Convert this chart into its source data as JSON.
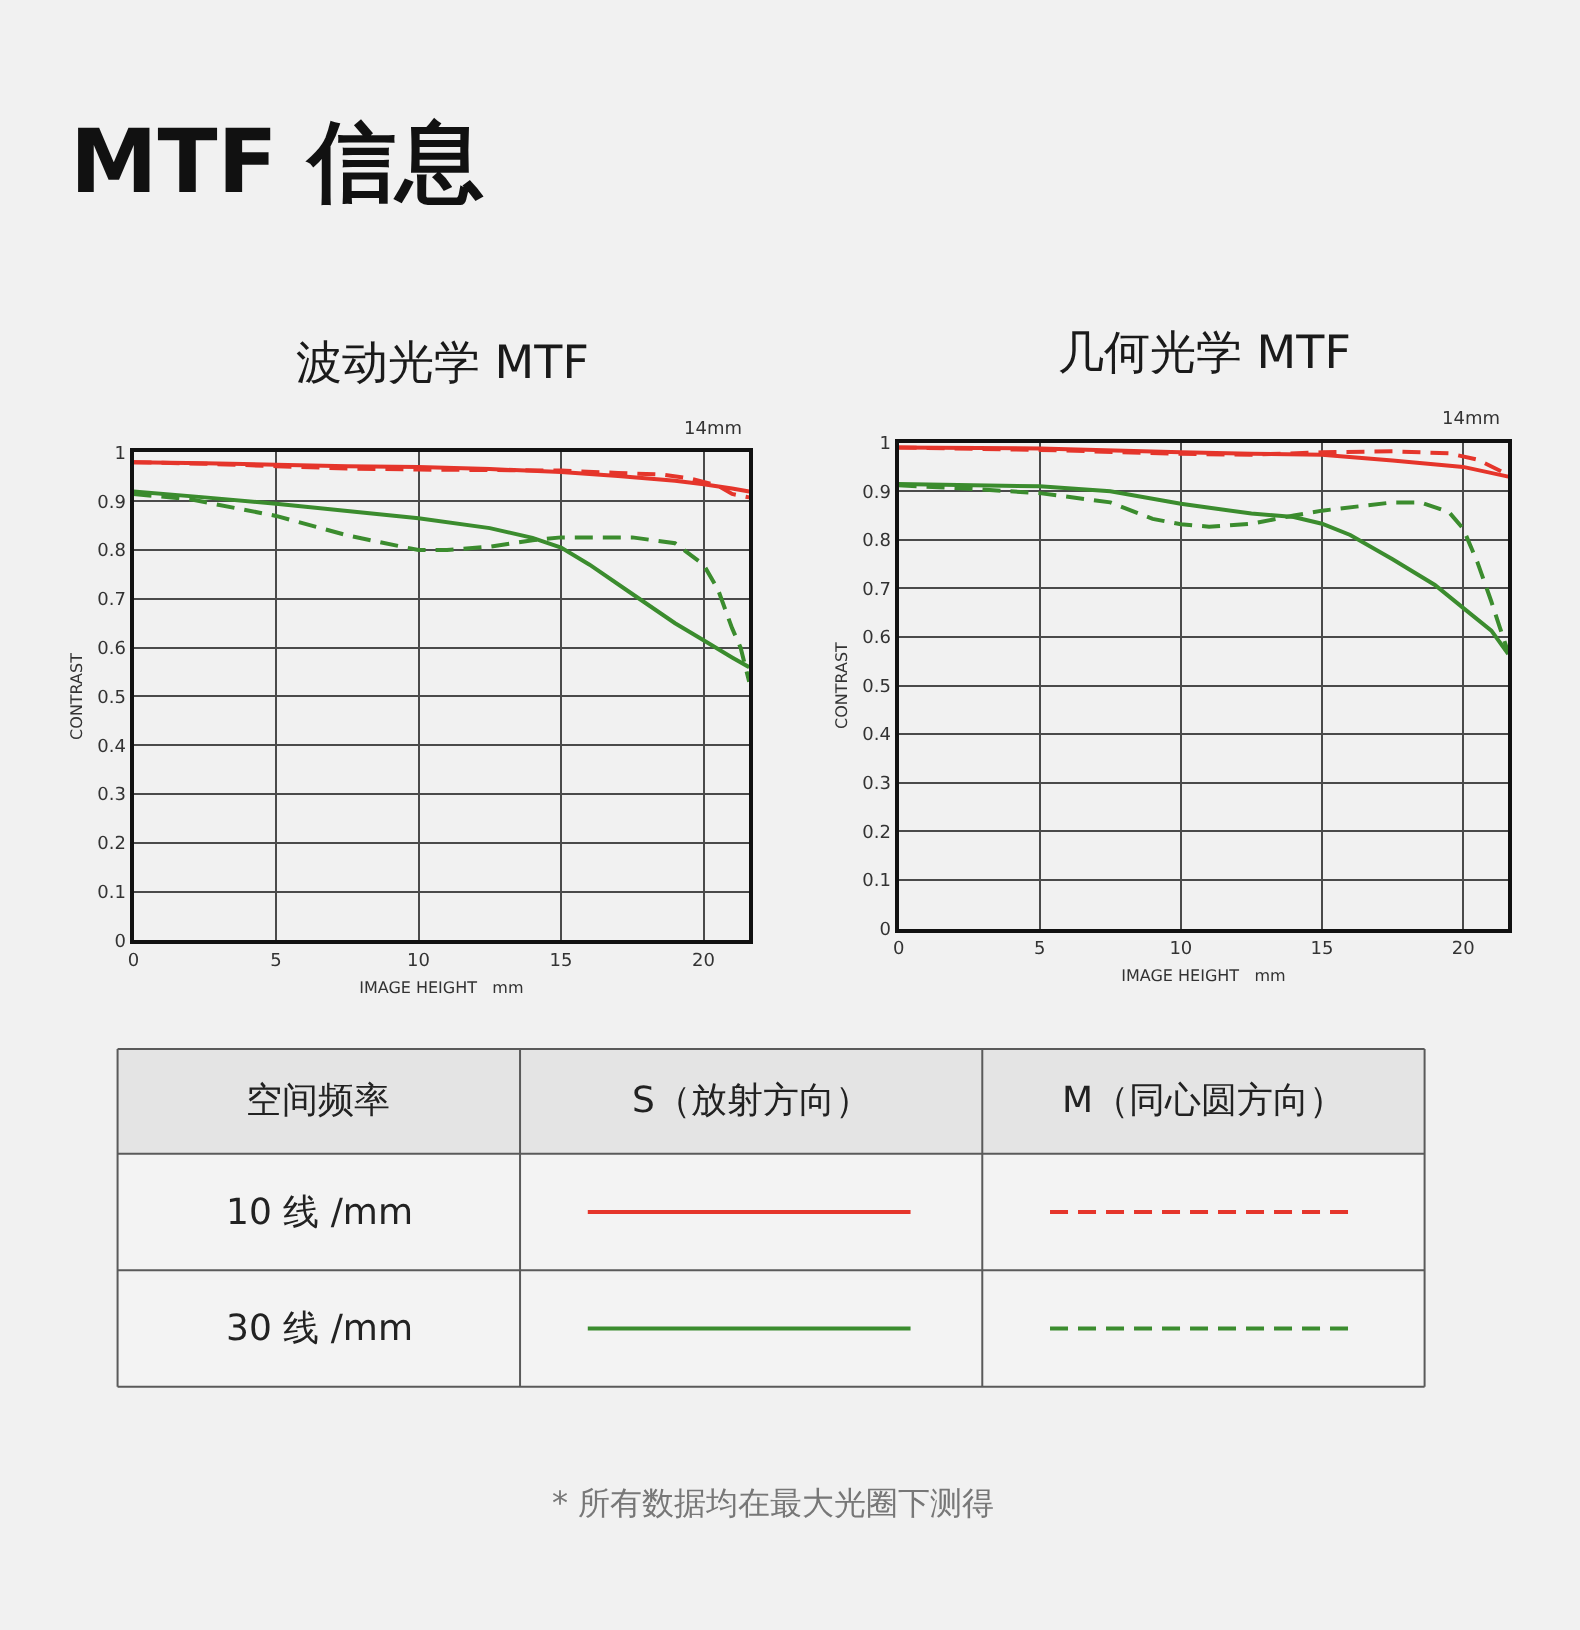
{
  "chart_data": [
    {
      "type": "line",
      "title": "波动光学 MTF",
      "xlabel": "IMAGE HEIGHT   mm",
      "ylabel": "CONTRAST",
      "annotations": [
        "14mm"
      ],
      "xlim": [
        0,
        21.6
      ],
      "xticks": [
        0,
        5,
        10,
        15,
        20
      ],
      "ylim": [
        0,
        1
      ],
      "yticks": [
        0,
        0.1,
        0.2,
        0.3,
        0.4,
        0.5,
        0.6,
        0.7,
        0.8,
        0.9,
        1
      ],
      "grid": true,
      "series": [
        {
          "color": "#e5352b",
          "line_style": "solid",
          "x": [
            0,
            2.5,
            5,
            7.5,
            10,
            12.5,
            15,
            17,
            19,
            20,
            21,
            21.6
          ],
          "values": [
            0.98,
            0.978,
            0.975,
            0.972,
            0.97,
            0.966,
            0.96,
            0.952,
            0.942,
            0.935,
            0.926,
            0.92
          ]
        },
        {
          "color": "#e5352b",
          "line_style": "dashed",
          "x": [
            0,
            2.5,
            5,
            7.5,
            10,
            12.5,
            15,
            17,
            18.5,
            19.5,
            20.5,
            21,
            21.6
          ],
          "values": [
            0.98,
            0.977,
            0.972,
            0.967,
            0.965,
            0.964,
            0.963,
            0.958,
            0.955,
            0.947,
            0.932,
            0.915,
            0.908
          ]
        },
        {
          "color": "#3b8c2e",
          "line_style": "solid",
          "x": [
            0,
            2.5,
            5,
            7.5,
            10,
            12.5,
            14,
            15,
            16,
            17.5,
            19,
            20,
            21,
            21.6
          ],
          "values": [
            0.92,
            0.908,
            0.895,
            0.88,
            0.865,
            0.845,
            0.825,
            0.805,
            0.77,
            0.71,
            0.65,
            0.615,
            0.58,
            0.56
          ]
        },
        {
          "color": "#3b8c2e",
          "line_style": "dashed",
          "x": [
            0,
            2,
            5,
            7.5,
            10,
            11,
            12.5,
            14,
            15,
            17.5,
            19,
            20,
            20.5,
            21,
            21.3,
            21.6
          ],
          "values": [
            0.915,
            0.904,
            0.87,
            0.83,
            0.8,
            0.8,
            0.807,
            0.82,
            0.826,
            0.826,
            0.814,
            0.77,
            0.72,
            0.64,
            0.6,
            0.53
          ]
        }
      ]
    },
    {
      "type": "line",
      "title": "几何光学 MTF",
      "xlabel": "IMAGE HEIGHT   mm",
      "ylabel": "CONTRAST",
      "annotations": [
        "14mm"
      ],
      "xlim": [
        0,
        21.6
      ],
      "xticks": [
        0,
        5,
        10,
        15,
        20
      ],
      "ylim": [
        0,
        1
      ],
      "yticks": [
        0,
        0.1,
        0.2,
        0.3,
        0.4,
        0.5,
        0.6,
        0.7,
        0.8,
        0.9,
        1
      ],
      "grid": true,
      "series": [
        {
          "color": "#e5352b",
          "line_style": "solid",
          "x": [
            0,
            5,
            10,
            12.5,
            15,
            17.5,
            20,
            21.6
          ],
          "values": [
            0.99,
            0.988,
            0.98,
            0.977,
            0.975,
            0.963,
            0.95,
            0.93
          ]
        },
        {
          "color": "#e5352b",
          "line_style": "dashed",
          "x": [
            0,
            5,
            10,
            12.5,
            15,
            17.5,
            19.5,
            20.5,
            21.6
          ],
          "values": [
            0.99,
            0.985,
            0.977,
            0.975,
            0.98,
            0.982,
            0.978,
            0.965,
            0.934
          ]
        },
        {
          "color": "#3b8c2e",
          "line_style": "solid",
          "x": [
            0,
            5,
            7.5,
            10,
            12.5,
            14,
            15,
            16,
            17.5,
            19,
            20,
            21,
            21.6
          ],
          "values": [
            0.915,
            0.91,
            0.9,
            0.874,
            0.854,
            0.847,
            0.833,
            0.81,
            0.76,
            0.707,
            0.66,
            0.613,
            0.565
          ]
        },
        {
          "color": "#3b8c2e",
          "line_style": "dashed",
          "x": [
            0,
            2.5,
            5,
            7.5,
            9,
            10,
            11,
            12.5,
            14,
            15,
            17.5,
            18.5,
            19.5,
            20,
            20.5,
            21,
            21.3,
            21.6
          ],
          "values": [
            0.912,
            0.905,
            0.896,
            0.877,
            0.843,
            0.832,
            0.827,
            0.833,
            0.85,
            0.86,
            0.877,
            0.877,
            0.857,
            0.823,
            0.755,
            0.673,
            0.62,
            0.568
          ]
        }
      ]
    },
    {
      "type": "other",
      "annotations": [
        "MTF 信息",
        "空间频率",
        "S（放射方向）",
        "M（同心圆方向）",
        "10 线 /mm",
        "30 线 /mm",
        "* 所有数据均在最大光圈下测得"
      ]
    }
  ]
}
